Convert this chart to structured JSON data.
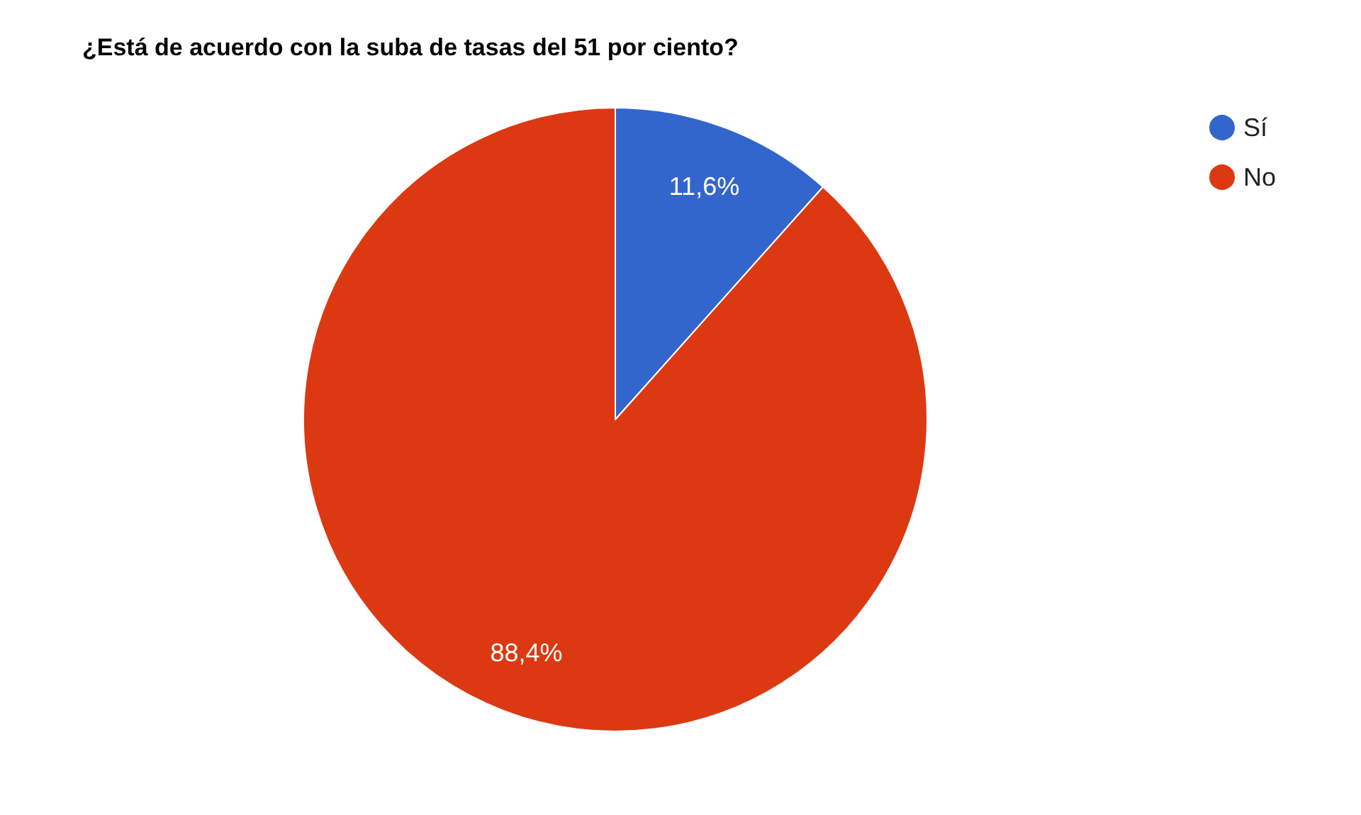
{
  "chart_data": {
    "type": "pie",
    "title": "¿Está de acuerdo con la suba de tasas del 51 por ciento?",
    "categories": [
      "Sí",
      "No"
    ],
    "values": [
      11.6,
      88.4
    ],
    "colors": [
      "#3366cc",
      "#dc3912"
    ],
    "value_labels": [
      "11,6%",
      "88,4%"
    ],
    "legend": "top right"
  }
}
